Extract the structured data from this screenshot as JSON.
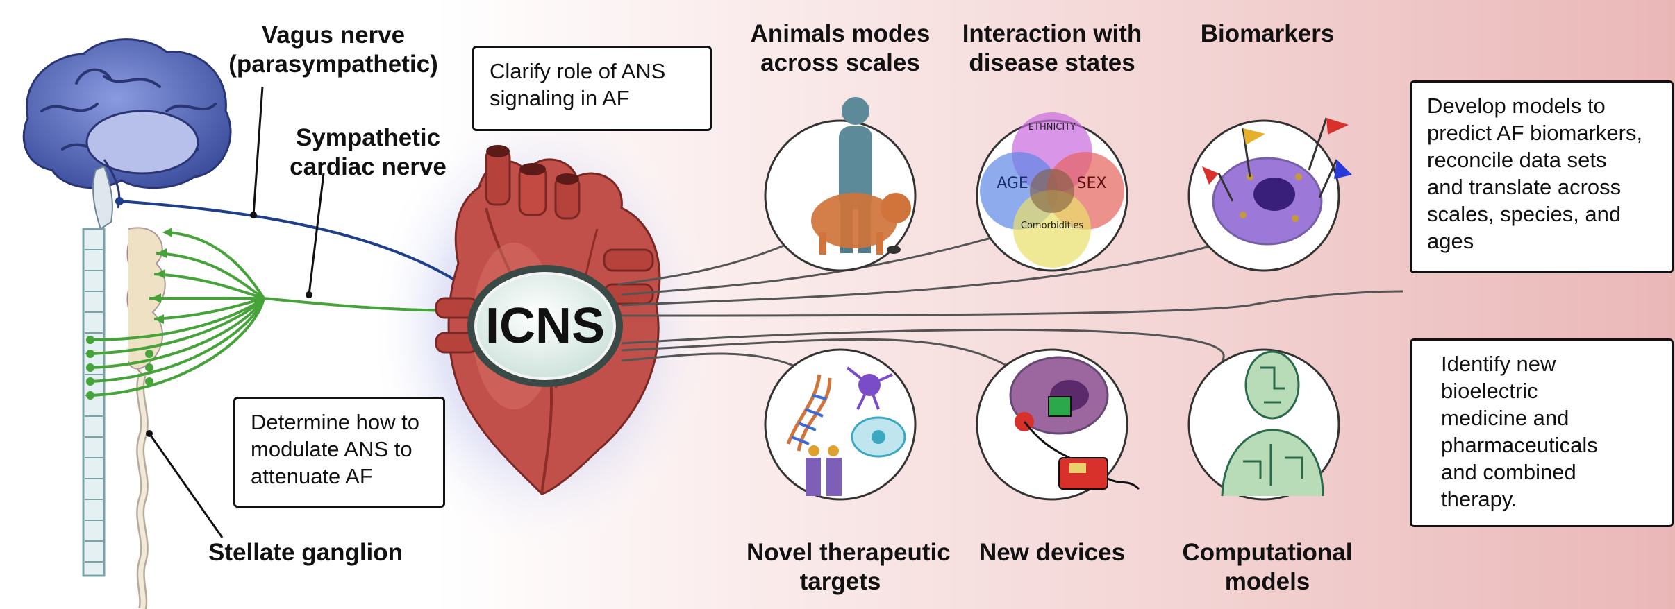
{
  "nerve_labels": {
    "vagus": [
      "Vagus nerve",
      "(parasympathetic)"
    ],
    "sympathetic": [
      "Sympathetic",
      "cardiac nerve"
    ],
    "stellate": "Stellate ganglion"
  },
  "center_label": "ICNS",
  "goal_boxes": {
    "clarify": [
      "Clarify role of ANS",
      "signaling in AF"
    ],
    "modulate": [
      "Determine how to",
      "modulate ANS to",
      "attenuate AF"
    ],
    "develop": [
      "Develop models to",
      "predict AF biomarkers,",
      "reconcile data sets",
      "and translate across",
      "scales, species, and",
      "ages"
    ],
    "identify": [
      "Identify new",
      "bioelectric",
      "medicine and",
      "pharmaceuticals",
      "and combined",
      "therapy."
    ]
  },
  "top_themes": [
    {
      "title": [
        "Animals modes",
        "across scales"
      ],
      "icon": "human-pig-mouse-icon"
    },
    {
      "title": [
        "Interaction with",
        "disease states"
      ],
      "icon": "venn-diagram-icon",
      "venn_labels": [
        "ETHNICITY",
        "AGE",
        "SEX",
        "Comorbidities"
      ]
    },
    {
      "title": [
        "Biomarkers"
      ],
      "icon": "cell-flags-icon"
    }
  ],
  "bottom_themes": [
    {
      "title": [
        "Novel therapeutic",
        "targets"
      ],
      "icon": "dna-neuron-channel-icon"
    },
    {
      "title": [
        "New devices"
      ],
      "icon": "cell-device-icon"
    },
    {
      "title": [
        "Computational",
        "models"
      ],
      "icon": "circuit-human-icon"
    }
  ],
  "colors": {
    "vagus": "#1f3f8a",
    "sympathetic": "#46a33a",
    "heart": "#c2504a",
    "brain": "#5a6cb8",
    "background_right": "#eab7b7"
  }
}
